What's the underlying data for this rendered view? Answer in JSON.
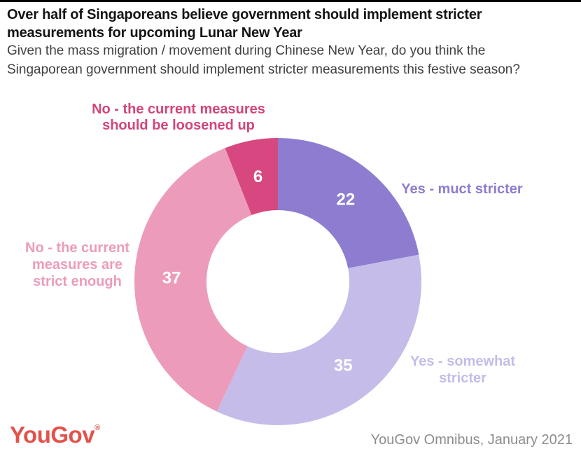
{
  "header": {
    "title_lines": [
      "Over half of Singaporeans believe government should implement stricter",
      "measurements for upcoming Lunar New Year"
    ],
    "subtitle_lines": [
      "Given the mass migration / movement during Chinese New Year, do you think the",
      "Singaporean government should implement stricter measurements this festive season?"
    ]
  },
  "chart_data": {
    "type": "pie",
    "subtype": "donut",
    "title": "",
    "categories": [
      "Yes - muct stricter",
      "Yes - somewhat stricter",
      "No - the current measures are strict enough",
      "No - the current measures should be loosened up"
    ],
    "values": [
      22,
      35,
      37,
      6
    ],
    "unit": "percent",
    "direction": "clockwise",
    "start_angle_deg": 0,
    "inner_radius_ratio": 0.5,
    "colors": [
      "#8d7cd0",
      "#c6bce9",
      "#ec9cba",
      "#d6487f"
    ],
    "label_colors": [
      "#8d7cd0",
      "#c6bce9",
      "#ec9cba",
      "#d2457c"
    ],
    "value_label_color": "#ffffff",
    "legend_position": "around"
  },
  "callouts": [
    {
      "lines": [
        "Yes - muct stricter"
      ]
    },
    {
      "lines": [
        "Yes - somewhat",
        "stricter"
      ]
    },
    {
      "lines": [
        "No - the current",
        "measures are",
        "strict enough"
      ]
    },
    {
      "lines": [
        "No - the current measures",
        "should be loosened up"
      ]
    }
  ],
  "footer": {
    "logo_text": "YouGov",
    "logo_reg_mark": "®",
    "logo_color": "#e3524a",
    "source": "YouGov Omnibus, January 2021"
  }
}
